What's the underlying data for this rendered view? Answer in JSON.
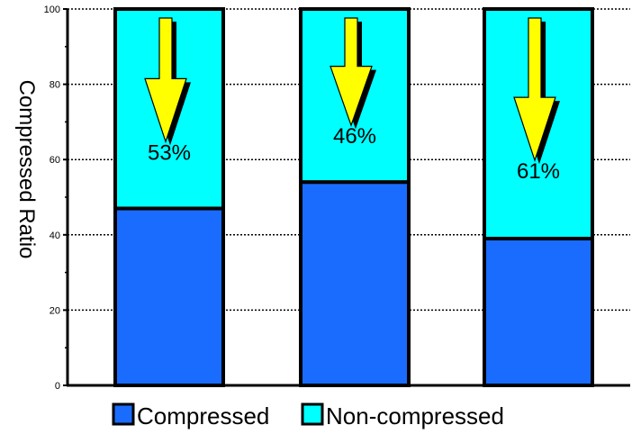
{
  "chart_data": {
    "type": "bar",
    "stacked": true,
    "categories": [
      "",
      "",
      ""
    ],
    "series": [
      {
        "name": "Compressed",
        "values": [
          47,
          54,
          39
        ]
      },
      {
        "name": "Non-compressed",
        "values": [
          53,
          46,
          61
        ]
      }
    ],
    "annotations": [
      "53%",
      "46%",
      "61%"
    ],
    "ylabel": "Compressed Ratio",
    "ylim": [
      0,
      100
    ],
    "yticks": [
      "0",
      "20",
      "40",
      "60",
      "80",
      "100"
    ],
    "grid": true,
    "legend_position": "bottom"
  },
  "colors": {
    "compressed": "#1a6cff",
    "non_compressed": "#00ffff",
    "arrow_fill": "#ffff00",
    "arrow_shadow": "#000000"
  }
}
